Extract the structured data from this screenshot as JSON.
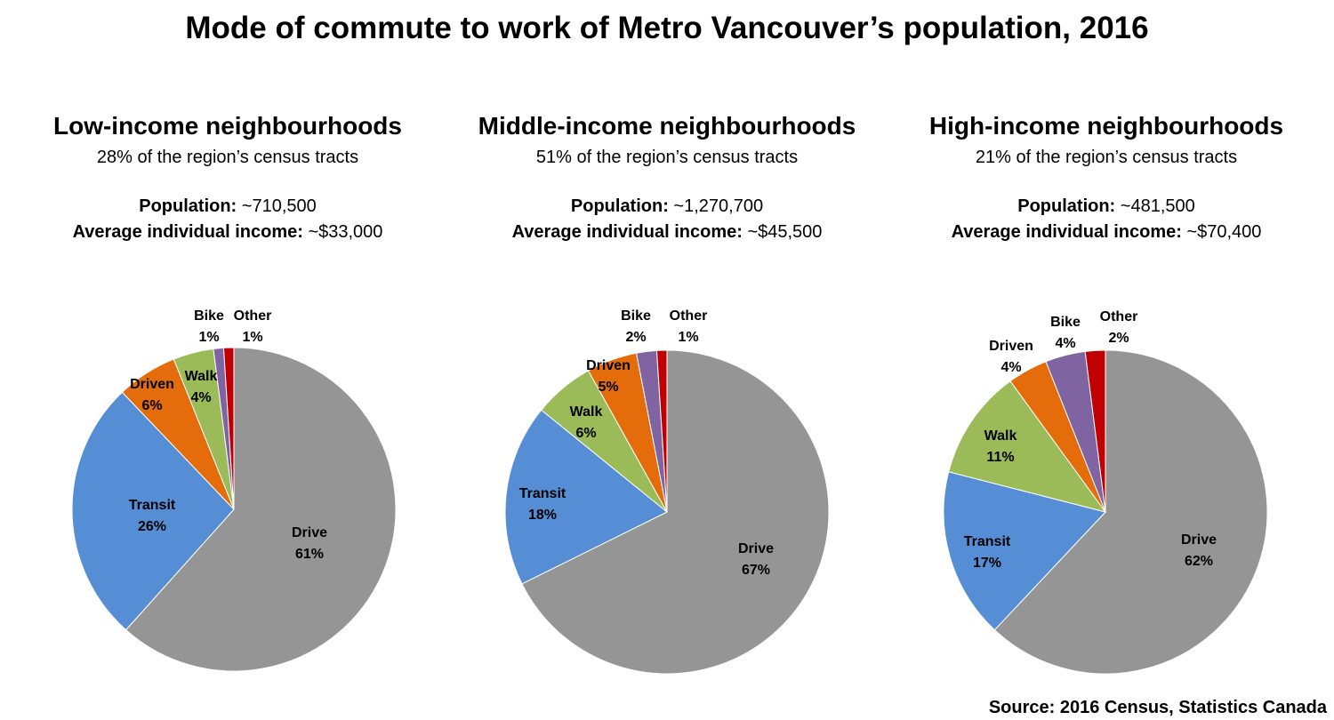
{
  "title": "Mode of commute to work of Metro Vancouver’s population, 2016",
  "source": "Source: 2016 Census, Statistics Canada",
  "colors": {
    "Drive": "#959595",
    "Transit": "#558ed5",
    "Driven": "#e46c0a",
    "Walk": "#9bbb59",
    "Bike": "#8064a2",
    "Other": "#c00000"
  },
  "panels": [
    {
      "title": "Low-income neighbourhoods",
      "subtitle": "28% of the region’s census tracts",
      "population_label": "Population:",
      "population_value": " ~710,500",
      "income_label": "Average individual income:",
      "income_value": " ~$33,000"
    },
    {
      "title": "Middle-income neighbourhoods",
      "subtitle": "51% of the region’s census tracts",
      "population_label": "Population:",
      "population_value": " ~1,270,700",
      "income_label": "Average individual income:",
      "income_value": " ~$45,500"
    },
    {
      "title": "High-income neighbourhoods",
      "subtitle": "21% of the region’s census tracts",
      "population_label": "Population:",
      "population_value": " ~481,500",
      "income_label": "Average individual income:",
      "income_value": " ~$70,400"
    }
  ],
  "chart_data": [
    {
      "type": "pie",
      "title": "Low-income neighbourhoods",
      "categories": [
        "Drive",
        "Transit",
        "Driven",
        "Walk",
        "Bike",
        "Other"
      ],
      "values": [
        61,
        26,
        6,
        4,
        1,
        1
      ],
      "labels": [
        "61%",
        "26%",
        "6%",
        "4%",
        "1%",
        "1%"
      ]
    },
    {
      "type": "pie",
      "title": "Middle-income neighbourhoods",
      "categories": [
        "Drive",
        "Transit",
        "Walk",
        "Driven",
        "Bike",
        "Other"
      ],
      "values": [
        67,
        18,
        6,
        5,
        2,
        1
      ],
      "labels": [
        "67%",
        "18%",
        "6%",
        "5%",
        "2%",
        "1%"
      ]
    },
    {
      "type": "pie",
      "title": "High-income neighbourhoods",
      "categories": [
        "Drive",
        "Transit",
        "Walk",
        "Driven",
        "Bike",
        "Other"
      ],
      "values": [
        62,
        17,
        11,
        4,
        4,
        2
      ],
      "labels": [
        "62%",
        "17%",
        "11%",
        "4%",
        "4%",
        "2%"
      ]
    }
  ]
}
